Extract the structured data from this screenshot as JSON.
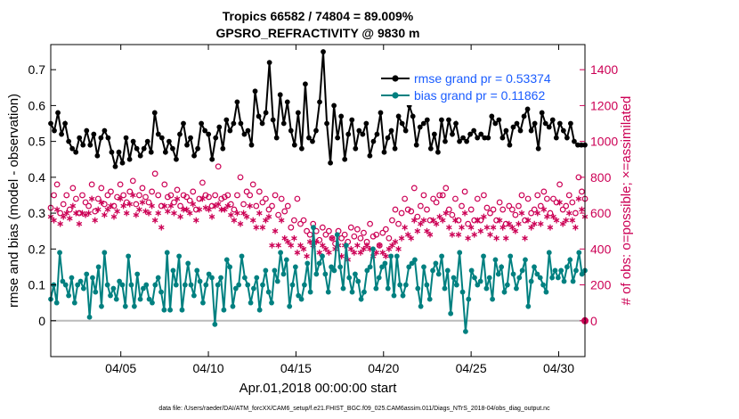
{
  "chart_data": {
    "type": "line",
    "title_line1": "Tropics 66582 / 74804 = 89.009%",
    "title_line2": "GPSRO_REFRACTIVITY @ 9830 m",
    "xlabel": "Apr.01,2018 00:00:00 start",
    "ylabel": "rmse and bias (model - observation)",
    "y2label": "# of obs: o=possible; ×=assimilated",
    "xlim": [
      1,
      31.5
    ],
    "ylim": [
      -0.1,
      0.77
    ],
    "y2lim": [
      -200,
      1540
    ],
    "x_tick_values": [
      5,
      10,
      15,
      20,
      25,
      30
    ],
    "x_tick_labels": [
      "04/05",
      "04/10",
      "04/15",
      "04/20",
      "04/25",
      "04/30"
    ],
    "y_tick_values": [
      0,
      0.1,
      0.2,
      0.3,
      0.4,
      0.5,
      0.6,
      0.7
    ],
    "y_tick_labels": [
      "0",
      "0.1",
      "0.2",
      "0.3",
      "0.4",
      "0.5",
      "0.6",
      "0.7"
    ],
    "y2_tick_values": [
      0,
      200,
      400,
      600,
      800,
      1000,
      1200,
      1400
    ],
    "y2_tick_labels": [
      "0",
      "200",
      "400",
      "600",
      "800",
      "1000",
      "1200",
      "1400"
    ],
    "footer": "data file: /Users/raeder/DAI/ATM_forcXX/CAM6_setup/f.e21.FHIST_BGC.f09_025.CAM6assim.011/Diags_NTrS_2018-04/obs_diag_output.nc",
    "colors": {
      "rmse": "#000000",
      "bias": "#008080",
      "obs": "#cc0055",
      "zero": "#bbbbbb"
    },
    "series": [
      {
        "name": "rmse grand pr = 0.53374",
        "axis": "left",
        "marker": "filled-circle",
        "values": [
          0.55,
          0.53,
          0.58,
          0.52,
          0.55,
          0.5,
          0.48,
          0.47,
          0.51,
          0.49,
          0.53,
          0.49,
          0.52,
          0.46,
          0.51,
          0.53,
          0.51,
          0.47,
          0.43,
          0.47,
          0.44,
          0.51,
          0.45,
          0.5,
          0.48,
          0.46,
          0.48,
          0.5,
          0.47,
          0.58,
          0.52,
          0.51,
          0.47,
          0.5,
          0.48,
          0.45,
          0.52,
          0.55,
          0.49,
          0.51,
          0.46,
          0.48,
          0.55,
          0.53,
          0.52,
          0.45,
          0.51,
          0.54,
          0.48,
          0.56,
          0.53,
          0.55,
          0.61,
          0.55,
          0.52,
          0.53,
          0.49,
          0.64,
          0.57,
          0.55,
          0.58,
          0.72,
          0.56,
          0.51,
          0.63,
          0.55,
          0.61,
          0.53,
          0.49,
          0.58,
          0.48,
          0.66,
          0.51,
          0.5,
          0.53,
          0.61,
          0.75,
          0.55,
          0.44,
          0.6,
          0.51,
          0.57,
          0.45,
          0.52,
          0.56,
          0.48,
          0.53,
          0.52,
          0.55,
          0.46,
          0.5,
          0.52,
          0.58,
          0.47,
          0.51,
          0.53,
          0.48,
          0.57,
          0.55,
          0.53,
          0.6,
          0.57,
          0.49,
          0.54,
          0.55,
          0.56,
          0.48,
          0.52,
          0.47,
          0.56,
          0.5,
          0.56,
          0.52,
          0.55,
          0.5,
          0.51,
          0.5,
          0.52,
          0.53,
          0.51,
          0.52,
          0.51,
          0.51,
          0.57,
          0.55,
          0.56,
          0.51,
          0.53,
          0.49,
          0.54,
          0.55,
          0.53,
          0.57,
          0.59,
          0.53,
          0.55,
          0.48,
          0.58,
          0.55,
          0.54,
          0.56,
          0.51,
          0.55,
          0.53,
          0.51,
          0.55,
          0.5,
          0.49,
          0.49,
          0.49
        ]
      },
      {
        "name": "bias grand pr = 0.11862",
        "axis": "left",
        "marker": "filled-circle",
        "values": [
          0.06,
          0.1,
          0.05,
          0.19,
          0.11,
          0.1,
          0.07,
          0.12,
          0.05,
          0.1,
          0.11,
          0.09,
          0.13,
          0.01,
          0.12,
          0.08,
          0.15,
          0.04,
          0.19,
          0.1,
          0.07,
          0.09,
          0.06,
          0.11,
          0.1,
          0.04,
          0.18,
          0.1,
          0.04,
          0.13,
          0.06,
          0.09,
          0.1,
          0.06,
          0.05,
          0.1,
          0.12,
          0.08,
          0.03,
          0.19,
          0.03,
          0.14,
          0.1,
          0.18,
          0.03,
          0.1,
          0.16,
          0.1,
          0.07,
          0.14,
          0.11,
          0.05,
          0.1,
          0.13,
          0.12,
          -0.01,
          0.1,
          0.12,
          0.03,
          0.17,
          0.15,
          0.04,
          0.09,
          0.1,
          0.18,
          0.12,
          0.1,
          0.05,
          0.09,
          0.12,
          0.03,
          0.1,
          0.14,
          0.08,
          0.05,
          0.14,
          0.11,
          0.19,
          0.13,
          0.17,
          0.04,
          0.1,
          0.15,
          0.07,
          0.06,
          0.1,
          0.16,
          0.08,
          0.26,
          0.13,
          0.16,
          0.18,
          0.13,
          0.08,
          0.15,
          0.14,
          0.24,
          0.15,
          0.09,
          0.21,
          0.12,
          0.08,
          0.13,
          0.11,
          0.06,
          0.08,
          0.14,
          0.15,
          0.2,
          0.09,
          0.12,
          0.15,
          0.16,
          0.09,
          0.18,
          0.07,
          0.18,
          0.1,
          0.07,
          0.1,
          0.15,
          0.16,
          0.17,
          0.09,
          0.04,
          0.15,
          0.1,
          0.06,
          0.14,
          0.16,
          0.13,
          0.18,
          0.09,
          0.14,
          0.02,
          0.12,
          0.1,
          0.19,
          0.08,
          -0.03,
          0.06,
          0.14,
          0.12,
          0.1,
          0.11,
          0.18,
          0.09,
          0.12,
          0.06,
          0.17,
          0.13,
          0.15,
          0.08,
          0.1,
          0.18,
          0.13,
          0.09,
          0.12,
          0.14,
          0.17,
          0.04,
          0.11,
          0.15,
          0.13,
          0.12,
          0.1,
          0.08,
          0.19,
          0.12,
          0.14,
          0.12,
          0.14,
          0.11,
          0.15,
          0.17,
          0.11,
          0.14,
          0.19,
          0.13,
          0.14
        ]
      },
      {
        "name": "obs possible",
        "axis": "right",
        "marker": "open-circle",
        "values": [
          630,
          700,
          760,
          600,
          650,
          700,
          620,
          740,
          680,
          600,
          700,
          660,
          640,
          760,
          610,
          680,
          740,
          650,
          700,
          720,
          640,
          690,
          760,
          700,
          660,
          720,
          780,
          650,
          700,
          740,
          690,
          660,
          720,
          820,
          700,
          640,
          760,
          690,
          700,
          660,
          730,
          640,
          700,
          690,
          670,
          720,
          620,
          680,
          770,
          700,
          690,
          640,
          700,
          860,
          680,
          690,
          700,
          650,
          620,
          700,
          800,
          650,
          720,
          700,
          760,
          640,
          720,
          660,
          680,
          620,
          640,
          700,
          590,
          680,
          610,
          640,
          520,
          560,
          680,
          540,
          560,
          500,
          480,
          540,
          500,
          450,
          520,
          480,
          500,
          460,
          430,
          500,
          460,
          480,
          440,
          520,
          470,
          510,
          460,
          490,
          440,
          540,
          470,
          480,
          420,
          490,
          510,
          460,
          560,
          620,
          540,
          600,
          680,
          620,
          610,
          740,
          580,
          640,
          700,
          620,
          560,
          680,
          660,
          700,
          700,
          740,
          620,
          590,
          680,
          560,
          640,
          720,
          540,
          620,
          560,
          680,
          560,
          700,
          630,
          600,
          620,
          560,
          660,
          620,
          540,
          640,
          620,
          590,
          640,
          700,
          560,
          680,
          600,
          620,
          700,
          640,
          720,
          680,
          600,
          680,
          660,
          760,
          620,
          640,
          700,
          660,
          600,
          800,
          720,
          680
        ]
      },
      {
        "name": "obs assimilated",
        "axis": "right",
        "marker": "star",
        "values": [
          580,
          560,
          620,
          540,
          580,
          600,
          570,
          640,
          600,
          540,
          600,
          590,
          600,
          680,
          560,
          620,
          660,
          590,
          620,
          640,
          580,
          610,
          680,
          640,
          600,
          650,
          700,
          590,
          620,
          660,
          610,
          600,
          640,
          560,
          600,
          520,
          640,
          610,
          640,
          600,
          680,
          580,
          620,
          620,
          600,
          650,
          560,
          620,
          680,
          630,
          620,
          580,
          640,
          650,
          620,
          620,
          640,
          590,
          560,
          600,
          540,
          600,
          580,
          640,
          560,
          520,
          600,
          520,
          560,
          580,
          420,
          500,
          420,
          560,
          460,
          440,
          420,
          460,
          380,
          420,
          400,
          360,
          440,
          420,
          440,
          380,
          420,
          400,
          380,
          460,
          400,
          420,
          360,
          420,
          340,
          400,
          380,
          420,
          380,
          400,
          420,
          400,
          360,
          380,
          420,
          380,
          360,
          400,
          420,
          440,
          400,
          460,
          520,
          480,
          460,
          560,
          500,
          540,
          560,
          500,
          480,
          560,
          540,
          580,
          560,
          600,
          520,
          480,
          560,
          480,
          520,
          600,
          460,
          520,
          480,
          560,
          500,
          580,
          520,
          480,
          520,
          460,
          560,
          520,
          460,
          540,
          520,
          500,
          540,
          600,
          460,
          560,
          520,
          540,
          600,
          540,
          620,
          580,
          520,
          580,
          560,
          660,
          540,
          560,
          600,
          560,
          520,
          680,
          620,
          580
        ]
      }
    ]
  }
}
